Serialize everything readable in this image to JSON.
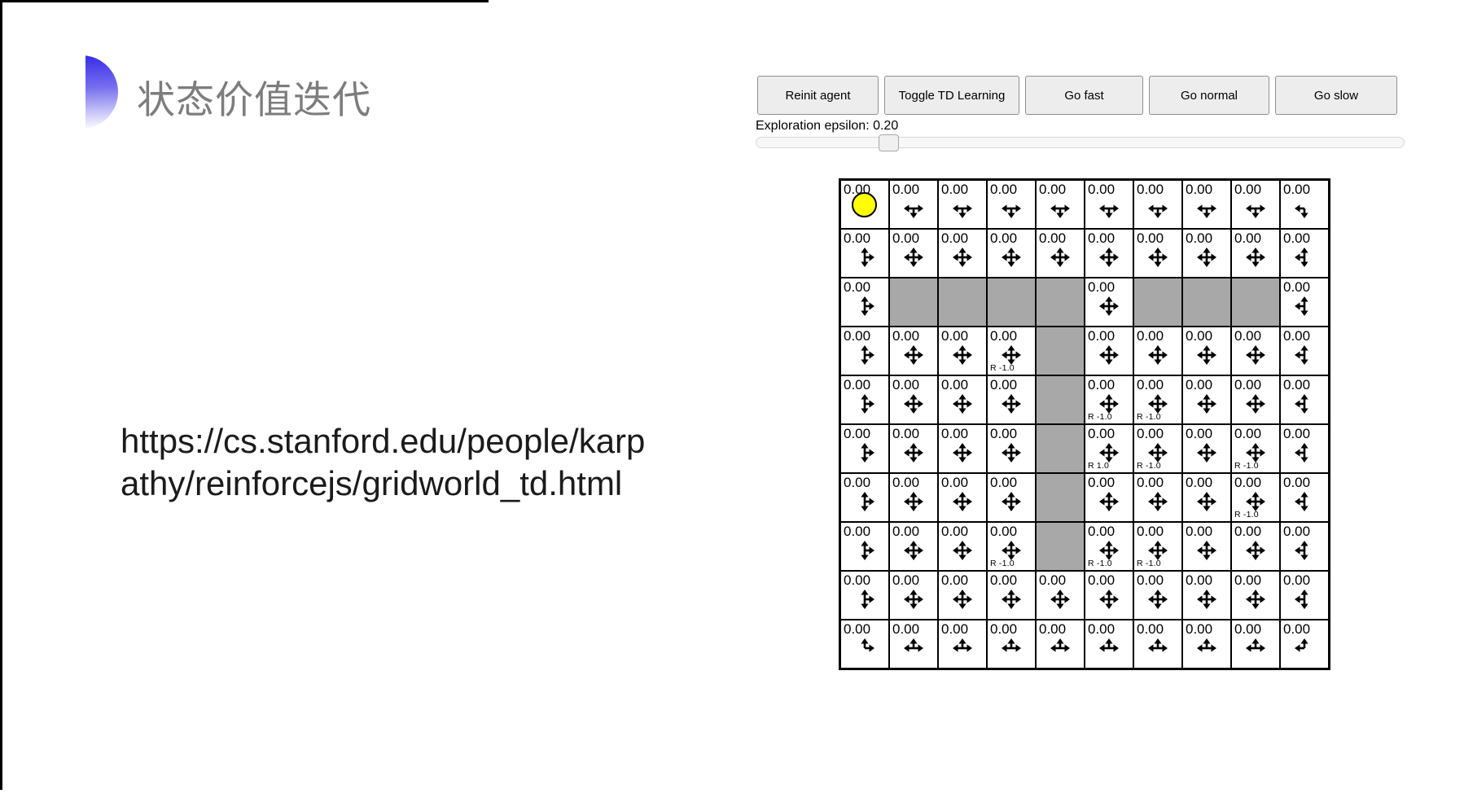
{
  "slide": {
    "title": "状态价值迭代",
    "url_line1": "https://cs.stanford.edu/people/karp",
    "url_line2": "athy/reinforcejs/gridworld_td.html"
  },
  "toolbar": {
    "buttons": [
      "Reinit agent",
      "Toggle TD Learning",
      "Go fast",
      "Go normal",
      "Go slow"
    ]
  },
  "epsilon": {
    "label": "Exploration epsilon: 0.20",
    "value": 0.2
  },
  "grid": {
    "rows": 10,
    "cols": 10,
    "cell_value": "0.00",
    "agent": {
      "row": 0,
      "col": 0
    },
    "walls": [
      [
        2,
        1
      ],
      [
        2,
        2
      ],
      [
        2,
        3
      ],
      [
        2,
        4
      ],
      [
        2,
        6
      ],
      [
        2,
        7
      ],
      [
        2,
        8
      ],
      [
        3,
        4
      ],
      [
        4,
        4
      ],
      [
        5,
        4
      ],
      [
        6,
        4
      ],
      [
        7,
        4
      ]
    ],
    "rewards": [
      {
        "row": 3,
        "col": 3,
        "label": "R -1.0"
      },
      {
        "row": 4,
        "col": 5,
        "label": "R -1.0"
      },
      {
        "row": 4,
        "col": 6,
        "label": "R -1.0"
      },
      {
        "row": 5,
        "col": 5,
        "label": "R 1.0"
      },
      {
        "row": 5,
        "col": 6,
        "label": "R -1.0"
      },
      {
        "row": 5,
        "col": 8,
        "label": "R -1.0"
      },
      {
        "row": 6,
        "col": 8,
        "label": "R -1.0"
      },
      {
        "row": 7,
        "col": 3,
        "label": "R -1.0"
      },
      {
        "row": 7,
        "col": 5,
        "label": "R -1.0"
      },
      {
        "row": 7,
        "col": 6,
        "label": "R -1.0"
      }
    ],
    "arrows": [
      [
        "",
        "lrd",
        "lrd",
        "lrd",
        "lrd",
        "lrd",
        "lrd",
        "lrd",
        "lrd",
        "ld"
      ],
      [
        "udr",
        "udlr",
        "udlr",
        "udlr",
        "udlr",
        "udlr",
        "udlr",
        "udlr",
        "udlr",
        "udl"
      ],
      [
        "udr",
        "",
        "",
        "",
        "",
        "udlr",
        "",
        "",
        "",
        "udl"
      ],
      [
        "udr",
        "udlr",
        "udlr",
        "udlr",
        "",
        "udlr",
        "udlr",
        "udlr",
        "udlr",
        "udl"
      ],
      [
        "udr",
        "udlr",
        "udlr",
        "udlr",
        "",
        "udlr",
        "udlr",
        "udlr",
        "udlr",
        "udl"
      ],
      [
        "udr",
        "udlr",
        "udlr",
        "udlr",
        "",
        "udlr",
        "udlr",
        "udlr",
        "udlr",
        "udl"
      ],
      [
        "udr",
        "udlr",
        "udlr",
        "udlr",
        "",
        "udlr",
        "udlr",
        "udlr",
        "udlr",
        "udl"
      ],
      [
        "udr",
        "udlr",
        "udlr",
        "udlr",
        "",
        "udlr",
        "udlr",
        "udlr",
        "udlr",
        "udl"
      ],
      [
        "udr",
        "udlr",
        "udlr",
        "udlr",
        "udlr",
        "udlr",
        "udlr",
        "udlr",
        "udlr",
        "udl"
      ],
      [
        "ur",
        "lru",
        "lru",
        "lru",
        "lru",
        "lru",
        "lru",
        "lru",
        "lru",
        "ul"
      ]
    ]
  },
  "colors": {
    "agent_fill": "#ffff00",
    "wall_fill": "#a8a8a8",
    "grid_line": "#000000",
    "title_gray": "#7d7d7d",
    "logo_blue": "#3a2fe9"
  }
}
